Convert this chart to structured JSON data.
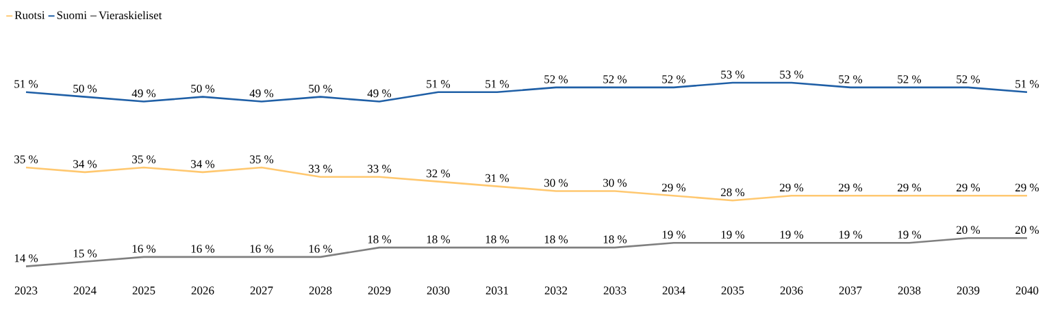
{
  "chart_data": {
    "type": "line",
    "legend": "top left",
    "marker": "none",
    "line_style": "solid",
    "categories": [
      "2023",
      "2024",
      "2025",
      "2026",
      "2027",
      "2028",
      "2029",
      "2030",
      "2031",
      "2032",
      "2033",
      "2034",
      "2035",
      "2036",
      "2037",
      "2038",
      "2039",
      "2040"
    ],
    "series": [
      {
        "name": "Ruotsi",
        "color": "#ffc870",
        "values": [
          35,
          34,
          35,
          34,
          35,
          33,
          33,
          32,
          31,
          30,
          30,
          29,
          28,
          29,
          29,
          29,
          29,
          29
        ],
        "value_labels": [
          "35 %",
          "34 %",
          "35 %",
          "34 %",
          "35 %",
          "33 %",
          "33 %",
          "32 %",
          "31 %",
          "30 %",
          "30 %",
          "29 %",
          "28 %",
          "29 %",
          "29 %",
          "29 %",
          "29 %",
          "29 %"
        ]
      },
      {
        "name": "Suomi",
        "color": "#1f5fa6",
        "values": [
          51,
          50,
          49,
          50,
          49,
          50,
          49,
          51,
          51,
          52,
          52,
          52,
          53,
          53,
          52,
          52,
          52,
          51
        ],
        "value_labels": [
          "51 %",
          "50 %",
          "49 %",
          "50 %",
          "49 %",
          "50 %",
          "49 %",
          "51 %",
          "51 %",
          "52 %",
          "52 %",
          "52 %",
          "53 %",
          "53 %",
          "52 %",
          "52 %",
          "52 %",
          "51 %"
        ]
      },
      {
        "name": "Vieraskieliset",
        "color": "#7f7f7f",
        "values": [
          14,
          15,
          16,
          16,
          16,
          16,
          18,
          18,
          18,
          18,
          18,
          19,
          19,
          19,
          19,
          19,
          20,
          20
        ],
        "value_labels": [
          "14 %",
          "15 %",
          "16 %",
          "16 %",
          "16 %",
          "16 %",
          "18 %",
          "18 %",
          "18 %",
          "18 %",
          "18 %",
          "19 %",
          "19 %",
          "19 %",
          "19 %",
          "19 %",
          "20 %",
          "20 %"
        ]
      }
    ]
  }
}
